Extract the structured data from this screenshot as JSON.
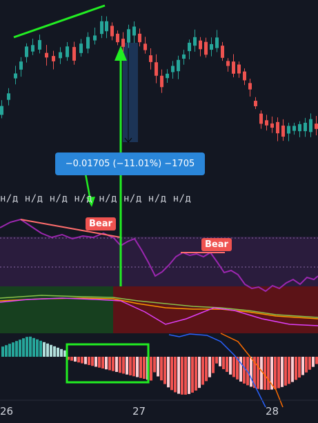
{
  "chart_data": {
    "type": "candlestick",
    "x_ticks": [
      "26",
      "27",
      "28"
    ],
    "measure_tooltip": "−0.01705 (−11.01%) −1705",
    "indicator_values": [
      "н/д",
      "н/д",
      "н/д",
      "н/д",
      "н/д",
      "н/д",
      "н/д",
      "н/д"
    ],
    "divergence_labels": [
      {
        "text": "Bear",
        "x": 0.37
      },
      {
        "text": "Bear",
        "x": 0.78
      }
    ],
    "colors": {
      "up": "#26a69a",
      "down": "#ef5350",
      "oscillator": "#9c27b0",
      "annotation": "#22ee22",
      "tooltip": "#2a86d9"
    }
  }
}
